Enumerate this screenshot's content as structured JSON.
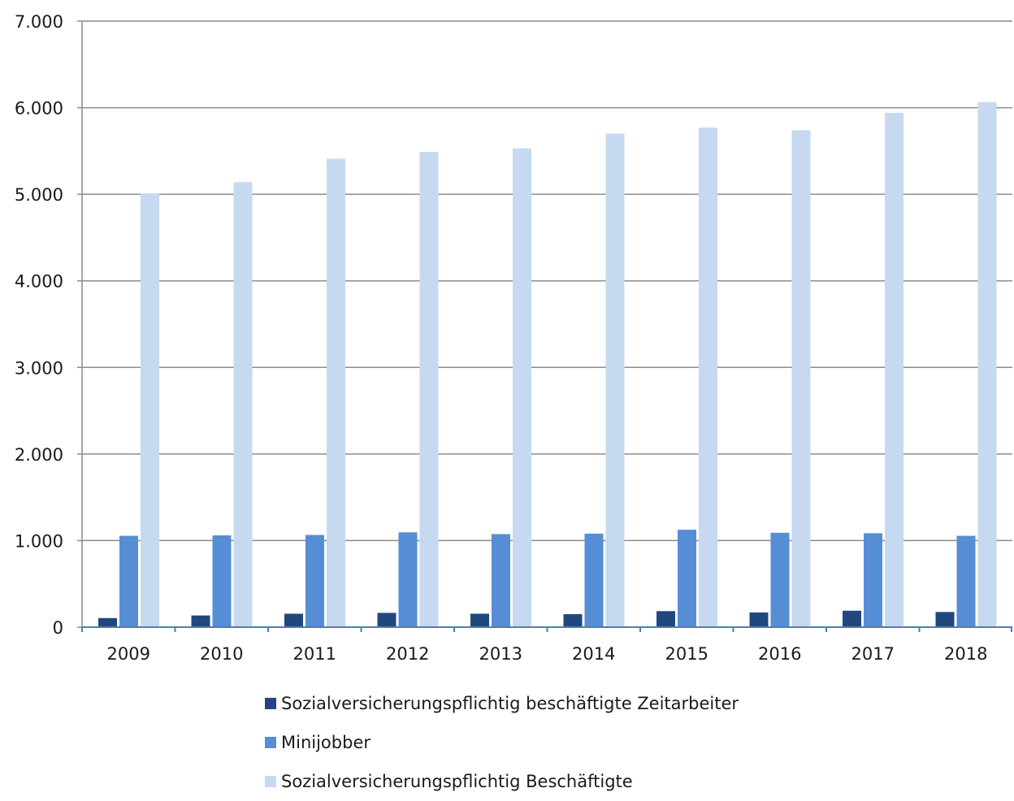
{
  "chart_data": {
    "type": "bar",
    "title": "",
    "xlabel": "",
    "ylabel": "",
    "categories": [
      "2009",
      "2010",
      "2011",
      "2012",
      "2013",
      "2014",
      "2015",
      "2016",
      "2017",
      "2018"
    ],
    "ylim": [
      0,
      7000
    ],
    "yticks": [
      {
        "value": 0,
        "label": "0"
      },
      {
        "value": 1000,
        "label": "1.000"
      },
      {
        "value": 2000,
        "label": "2.000"
      },
      {
        "value": 3000,
        "label": "3.000"
      },
      {
        "value": 4000,
        "label": "4.000"
      },
      {
        "value": 5000,
        "label": "5.000"
      },
      {
        "value": 6000,
        "label": "6.000"
      },
      {
        "value": 7000,
        "label": "7.000"
      }
    ],
    "grid": true,
    "legend_position": "bottom",
    "series": [
      {
        "name": "Sozialversicherungspflichtig beschäftigte Zeitarbeiter",
        "color": "#1f497d",
        "values": [
          105,
          135,
          155,
          165,
          155,
          150,
          185,
          170,
          190,
          175
        ]
      },
      {
        "name": "Minijobber",
        "color": "#558ed5",
        "values": [
          1055,
          1060,
          1065,
          1095,
          1075,
          1080,
          1125,
          1090,
          1085,
          1055
        ]
      },
      {
        "name": "Sozialversicherungspflichtig Beschäftigte",
        "color": "#c6d9f1",
        "values": [
          5010,
          5140,
          5410,
          5490,
          5530,
          5700,
          5770,
          5740,
          5940,
          6065
        ]
      }
    ]
  }
}
